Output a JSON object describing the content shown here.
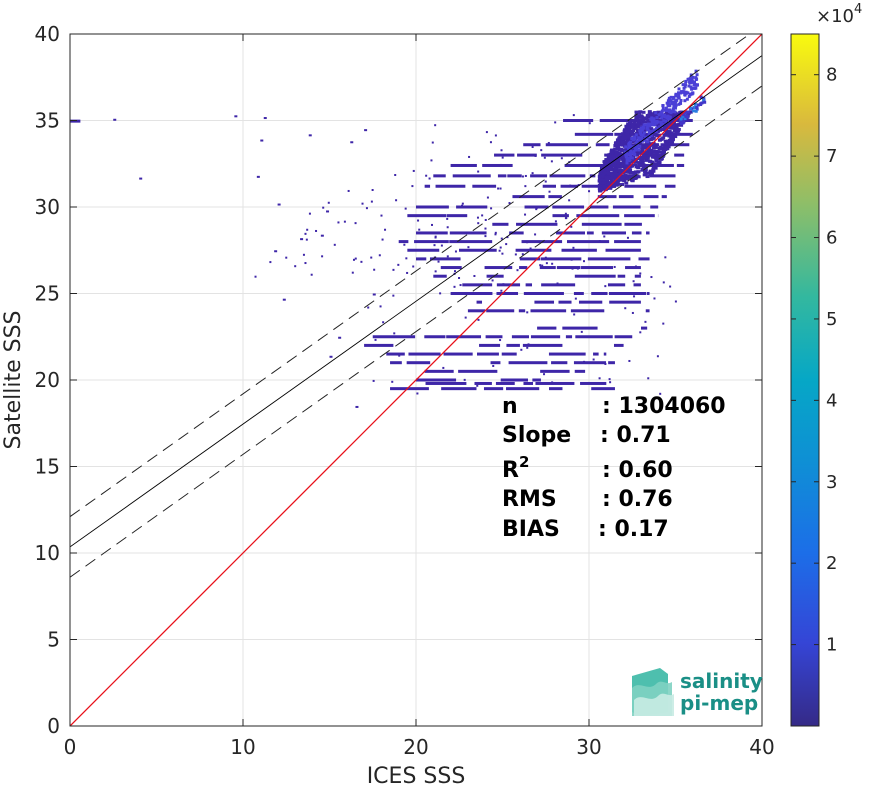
{
  "chart_data": {
    "type": "heatmap",
    "xlabel": "ICES SSS",
    "ylabel": "Satellite SSS",
    "xlim": [
      0,
      40
    ],
    "ylim": [
      0,
      40
    ],
    "x_ticks": [
      "0",
      "10",
      "20",
      "30",
      "40"
    ],
    "y_ticks": [
      "0",
      "5",
      "10",
      "15",
      "20",
      "25",
      "30",
      "35",
      "40"
    ],
    "grid": true,
    "colormap": "parula",
    "colorbar": {
      "range": [
        0,
        85000
      ],
      "ticks": [
        "1",
        "2",
        "3",
        "4",
        "5",
        "6",
        "7",
        "8"
      ],
      "tick_values": [
        10000,
        20000,
        30000,
        40000,
        50000,
        60000,
        70000,
        80000
      ],
      "multiplier_base": "×10",
      "multiplier_exp": "4"
    },
    "lines": {
      "identity": {
        "slope": 1,
        "intercept": 0,
        "color": "#e8101a"
      },
      "regression": {
        "slope": 0.71,
        "intercept": 10.35,
        "color": "#000000"
      },
      "upper_bound": {
        "slope": 0.71,
        "intercept": 12.1,
        "style": "dashed"
      },
      "lower_bound": {
        "slope": 0.71,
        "intercept": 8.6,
        "style": "dashed"
      }
    },
    "dense_core": {
      "x_range": [
        30.5,
        36.2
      ],
      "y_range": [
        30.5,
        35.6
      ]
    },
    "stats": [
      {
        "label": "n",
        "sup": "",
        "value": ": 1304060"
      },
      {
        "label": "Slope",
        "sup": "",
        "value": ": 0.71"
      },
      {
        "label": "R",
        "sup": "2",
        "value": ": 0.60"
      },
      {
        "label": "RMS",
        "sup": "",
        "value": ": 0.76"
      },
      {
        "label": "BIAS",
        "sup": "",
        "value": ": 0.17"
      }
    ]
  },
  "logo": {
    "line1": "salinity",
    "line2": "pi-mep"
  },
  "colors": {
    "density_low": "#3e26a8",
    "identity_line": "#e8101a",
    "logo_teal": "#1a8f86"
  }
}
